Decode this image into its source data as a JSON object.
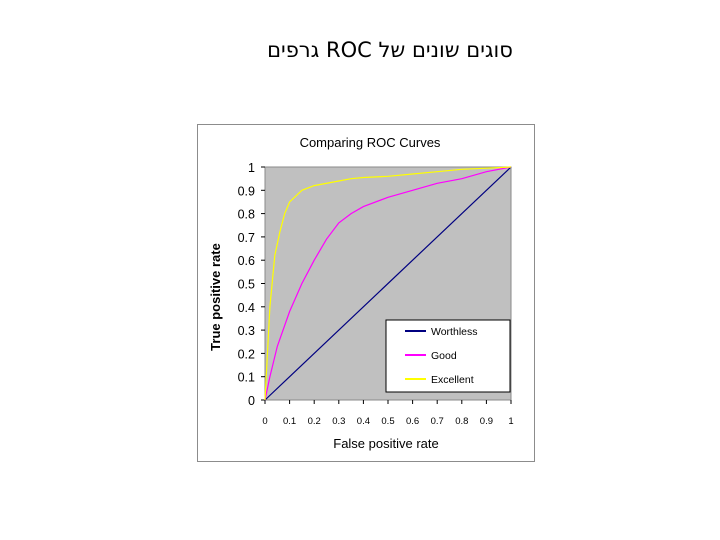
{
  "slide": {
    "title": "סוגים שונים של ROC גרפים"
  },
  "chart_data": {
    "type": "line",
    "title": "Comparing ROC Curves",
    "xlabel": "False positive rate",
    "ylabel": "True positive rate",
    "xlim": [
      0,
      1
    ],
    "ylim": [
      0,
      1
    ],
    "x_ticks": [
      0,
      0.1,
      0.2,
      0.3,
      0.4,
      0.5,
      0.6,
      0.7,
      0.8,
      0.9,
      1
    ],
    "x_tick_labels": [
      "0",
      "0.1",
      "0.2",
      "0.3",
      "0.4",
      "0.5",
      "0.6",
      "0.7",
      "0.8",
      "0.9",
      "1"
    ],
    "y_ticks": [
      0,
      0.1,
      0.2,
      0.3,
      0.4,
      0.5,
      0.6,
      0.7,
      0.8,
      0.9,
      1
    ],
    "y_tick_labels": [
      "0",
      "0.1",
      "0.2",
      "0.3",
      "0.4",
      "0.5",
      "0.6",
      "0.7",
      "0.8",
      "0.9",
      "1"
    ],
    "grid": false,
    "plot_background": "#c0c0c0",
    "legend_position": "bottom-right",
    "series": [
      {
        "name": "Worthless",
        "color": "#000080",
        "x": [
          0,
          1
        ],
        "y": [
          0,
          1
        ]
      },
      {
        "name": "Good",
        "color": "#ff00ff",
        "x": [
          0,
          0.02,
          0.05,
          0.1,
          0.15,
          0.2,
          0.25,
          0.3,
          0.35,
          0.4,
          0.5,
          0.6,
          0.7,
          0.8,
          0.9,
          1
        ],
        "y": [
          0,
          0.1,
          0.23,
          0.38,
          0.5,
          0.6,
          0.69,
          0.76,
          0.8,
          0.83,
          0.87,
          0.9,
          0.93,
          0.95,
          0.98,
          1
        ]
      },
      {
        "name": "Excellent",
        "color": "#ffff00",
        "x": [
          0,
          0.02,
          0.04,
          0.06,
          0.08,
          0.1,
          0.15,
          0.2,
          0.3,
          0.35,
          0.4,
          0.5,
          0.6,
          0.7,
          0.8,
          0.9,
          1
        ],
        "y": [
          0,
          0.4,
          0.62,
          0.72,
          0.8,
          0.85,
          0.9,
          0.92,
          0.94,
          0.95,
          0.955,
          0.96,
          0.97,
          0.98,
          0.99,
          0.995,
          1
        ]
      }
    ]
  }
}
